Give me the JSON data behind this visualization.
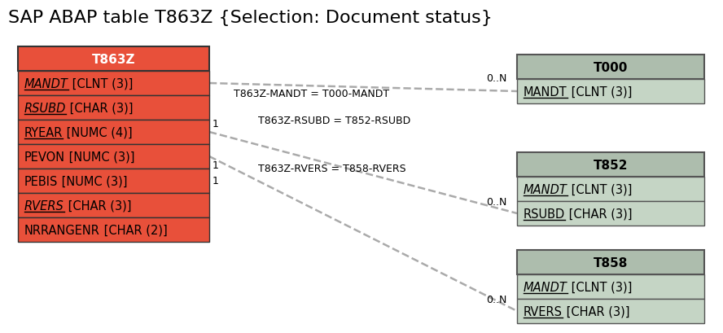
{
  "title": "SAP ABAP table T863Z {Selection: Document status}",
  "title_fontsize": 16,
  "bg_color": "#ffffff",
  "main_table": {
    "name": "T863Z",
    "header_bg": "#e8503a",
    "header_text_color": "#ffffff",
    "row_bg": "#e8503a",
    "row_text_color": "#000000",
    "border_color": "#333333",
    "fields": [
      {
        "text": "MANDT",
        "suffix": " [CLNT (3)]",
        "italic": true,
        "underline": true
      },
      {
        "text": "RSUBD",
        "suffix": " [CHAR (3)]",
        "italic": true,
        "underline": true
      },
      {
        "text": "RYEAR",
        "suffix": " [NUMC (4)]",
        "italic": false,
        "underline": true
      },
      {
        "text": "PEVON",
        "suffix": " [NUMC (3)]",
        "italic": false,
        "underline": false
      },
      {
        "text": "PEBIS",
        "suffix": " [NUMC (3)]",
        "italic": false,
        "underline": false
      },
      {
        "text": "RVERS",
        "suffix": " [CHAR (3)]",
        "italic": true,
        "underline": true
      },
      {
        "text": "NRRANGENR",
        "suffix": " [CHAR (2)]",
        "italic": false,
        "underline": false
      }
    ]
  },
  "related_tables": [
    {
      "name": "T000",
      "header_bg": "#adbdad",
      "header_text_color": "#000000",
      "row_bg": "#c5d5c5",
      "row_text_color": "#000000",
      "border_color": "#555555",
      "fields": [
        {
          "text": "MANDT",
          "suffix": " [CLNT (3)]",
          "italic": false,
          "underline": true
        }
      ]
    },
    {
      "name": "T852",
      "header_bg": "#adbdad",
      "header_text_color": "#000000",
      "row_bg": "#c5d5c5",
      "row_text_color": "#000000",
      "border_color": "#555555",
      "fields": [
        {
          "text": "MANDT",
          "suffix": " [CLNT (3)]",
          "italic": true,
          "underline": true
        },
        {
          "text": "RSUBD",
          "suffix": " [CHAR (3)]",
          "italic": false,
          "underline": true
        }
      ]
    },
    {
      "name": "T858",
      "header_bg": "#adbdad",
      "header_text_color": "#000000",
      "row_bg": "#c5d5c5",
      "row_text_color": "#000000",
      "border_color": "#555555",
      "fields": [
        {
          "text": "MANDT",
          "suffix": " [CLNT (3)]",
          "italic": true,
          "underline": true
        },
        {
          "text": "RVERS",
          "suffix": " [CHAR (3)]",
          "italic": false,
          "underline": true
        }
      ]
    }
  ],
  "line_color": "#aaaaaa",
  "line_style": "--"
}
